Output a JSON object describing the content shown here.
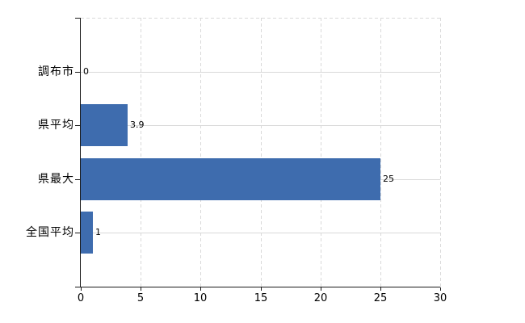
{
  "chart_data": {
    "type": "bar",
    "orientation": "horizontal",
    "title": "",
    "xlabel": "",
    "ylabel": "",
    "categories": [
      "調布市",
      "県平均",
      "県最大",
      "全国平均"
    ],
    "values": [
      0,
      3.9,
      25,
      1
    ],
    "value_labels": [
      "0",
      "3.9",
      "25",
      "1"
    ],
    "xlim": [
      0,
      30
    ],
    "xticks": [
      0,
      5,
      10,
      15,
      20,
      25,
      30
    ],
    "grid": true,
    "legend": false,
    "bar_color": "#3E6CAE",
    "gridline_color": "#D9D9D9",
    "axis_color": "#1A1A1A",
    "text_color": "#000000"
  }
}
